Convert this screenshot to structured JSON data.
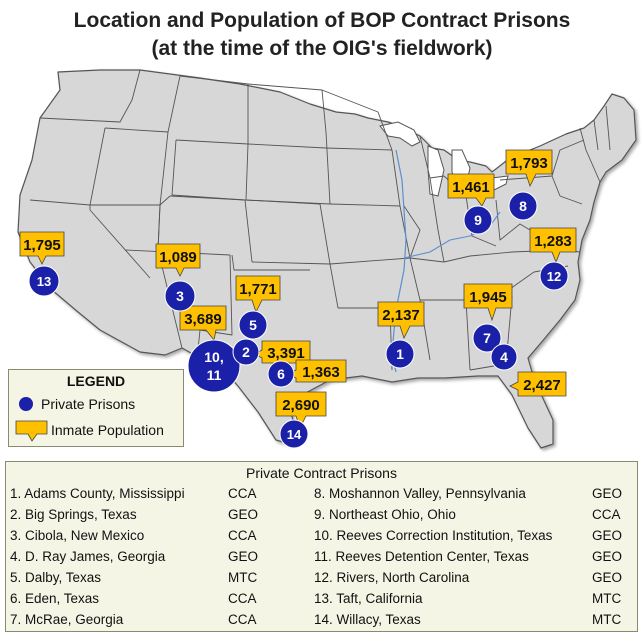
{
  "title": {
    "line1": "Location and Population of BOP Contract Prisons",
    "line2": "(at the time of the OIG's fieldwork)"
  },
  "colors": {
    "land": "#d7d7d7",
    "border": "#555555",
    "water": "#ffffff",
    "marker": "#1a20a8",
    "callout": "#ffc000",
    "panel": "#f5f5e6"
  },
  "legend": {
    "title": "LEGEND",
    "private_prisons": "Private Prisons",
    "inmate_population": "Inmate Population"
  },
  "markers": [
    {
      "id": "1",
      "label": "1"
    },
    {
      "id": "2",
      "label": "2"
    },
    {
      "id": "3",
      "label": "3"
    },
    {
      "id": "4",
      "label": "4"
    },
    {
      "id": "5",
      "label": "5"
    },
    {
      "id": "6",
      "label": "6"
    },
    {
      "id": "7",
      "label": "7"
    },
    {
      "id": "8",
      "label": "8"
    },
    {
      "id": "9",
      "label": "9"
    },
    {
      "id": "10-11",
      "label1": "10,",
      "label2": "11"
    },
    {
      "id": "12",
      "label": "12"
    },
    {
      "id": "13",
      "label": "13"
    },
    {
      "id": "14",
      "label": "14"
    }
  ],
  "populations": {
    "p1": "2,137",
    "p2": "3,391",
    "p3": "1,089",
    "p4": "2,427",
    "p5": "1,771",
    "p6": "1,363",
    "p7": "1,945",
    "p8": "1,793",
    "p9": "1,461",
    "p10_11": "3,689",
    "p12": "1,283",
    "p13": "1,795",
    "p14": "2,690"
  },
  "list": {
    "title": "Private Contract Prisons",
    "left": [
      {
        "name": "1. Adams County, Mississippi",
        "operator": "CCA"
      },
      {
        "name": "2. Big Springs, Texas",
        "operator": "GEO"
      },
      {
        "name": "3. Cibola, New Mexico",
        "operator": "CCA"
      },
      {
        "name": "4. D. Ray James, Georgia",
        "operator": "GEO"
      },
      {
        "name": "5. Dalby, Texas",
        "operator": "MTC"
      },
      {
        "name": "6. Eden, Texas",
        "operator": "CCA"
      },
      {
        "name": "7. McRae, Georgia",
        "operator": "CCA"
      }
    ],
    "right": [
      {
        "name": "8. Moshannon Valley, Pennsylvania",
        "operator": "GEO"
      },
      {
        "name": "9. Northeast Ohio, Ohio",
        "operator": "CCA"
      },
      {
        "name": "10. Reeves Correction Institution, Texas",
        "operator": "GEO"
      },
      {
        "name": "11. Reeves Detention Center, Texas",
        "operator": "GEO"
      },
      {
        "name": "12. Rivers, North Carolina",
        "operator": "GEO"
      },
      {
        "name": "13. Taft, California",
        "operator": "MTC"
      },
      {
        "name": "14. Willacy, Texas",
        "operator": "MTC"
      }
    ]
  }
}
